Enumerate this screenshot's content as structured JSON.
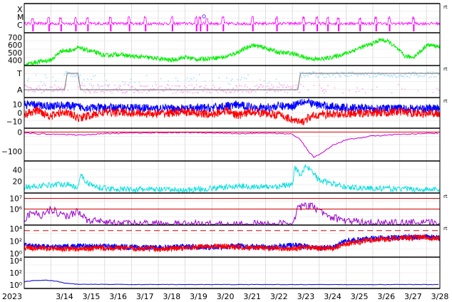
{
  "chart_data": {
    "type": "line",
    "x_axis": {
      "year_label": "2023",
      "tick_labels": [
        "3/14",
        "3/15",
        "3/16",
        "3/17",
        "3/18",
        "3/19",
        "3/20",
        "3/21",
        "3/22",
        "3/23",
        "3/24",
        "3/25",
        "3/26",
        "3/27",
        "3/28"
      ],
      "domain_days": [
        13.0,
        28.5
      ]
    },
    "panels": [
      {
        "id": "flares",
        "y_tick_labels": [
          "X",
          "M",
          "C"
        ],
        "right_marker": "rt",
        "series": [
          {
            "color": "#ff00ff",
            "baseline_class": "C",
            "event_days": [
              13.3,
              13.9,
              14.35,
              14.9,
              15.35,
              16.2,
              16.9,
              17.5,
              18.5,
              19.4,
              19.55,
              19.8,
              20.4,
              21.5,
              22.4,
              23.4,
              23.9,
              24.3,
              24.7,
              25.5,
              26.1,
              26.6,
              27.5
            ],
            "max_class": "M",
            "max_day": 19.7
          }
        ]
      },
      {
        "id": "solar-wind-speed",
        "y_ticks": [
          400,
          500,
          600,
          700
        ],
        "y_tick_labels": [
          "400",
          "500",
          "600",
          "700"
        ],
        "ylim": [
          330,
          760
        ],
        "series": [
          {
            "color": "#00ee00",
            "days": [
              13.0,
              13.5,
              14.0,
              14.4,
              14.6,
              15.0,
              15.5,
              16.0,
              16.5,
              17.0,
              17.5,
              18.0,
              18.5,
              19.0,
              19.5,
              20.0,
              20.5,
              21.0,
              21.5,
              22.0,
              22.5,
              23.0,
              23.5,
              24.0,
              24.5,
              25.0,
              25.5,
              26.0,
              26.3,
              26.6,
              27.0,
              27.2,
              27.5,
              27.8,
              28.0,
              28.5
            ],
            "values": [
              340,
              380,
              400,
              530,
              520,
              560,
              520,
              460,
              480,
              450,
              440,
              420,
              400,
              440,
              410,
              430,
              440,
              510,
              600,
              560,
              500,
              490,
              430,
              410,
              440,
              490,
              560,
              620,
              670,
              640,
              520,
              450,
              440,
              520,
              600,
              580
            ]
          }
        ]
      },
      {
        "id": "imf-sector",
        "y_tick_labels": [
          "T",
          "A"
        ],
        "right_marker": "rt",
        "series": [
          {
            "name": "",
            "color": "#aaddff",
            "role": "toward-scatter"
          },
          {
            "name": "",
            "color": "#ffaaee",
            "role": "away-scatter"
          },
          {
            "color": "#888888",
            "role": "sector",
            "days": [
              13.0,
              14.5,
              14.6,
              15.0,
              15.1,
              23.2,
              23.3,
              28.5
            ],
            "levels": [
              "A",
              "A",
              "T",
              "T",
              "A",
              "A",
              "T",
              "T"
            ]
          }
        ]
      },
      {
        "id": "imf-bz",
        "y_ticks": [
          10,
          0,
          -10
        ],
        "y_tick_labels": [
          "10",
          "0",
          "−10"
        ],
        "ylim": [
          -18,
          18
        ],
        "right_marker": "rt",
        "series": [
          {
            "color": "#0000ff",
            "role": "Bt",
            "days": [
              13,
              13.5,
              14,
              14.5,
              15,
              15.5,
              16,
              17,
              18,
              19,
              20,
              20.5,
              21,
              21.5,
              22,
              22.5,
              23,
              23.3,
              23.6,
              24,
              25,
              26,
              27,
              28,
              28.5
            ],
            "values": [
              10,
              9,
              8,
              9,
              7,
              6,
              6,
              6,
              5,
              5,
              6,
              8,
              9,
              7,
              6,
              8,
              8,
              14,
              12,
              9,
              6,
              5,
              5,
              5,
              5
            ]
          },
          {
            "color": "#ff0000",
            "role": "Bz",
            "days": [
              13,
              13.5,
              14,
              14.5,
              15,
              15.5,
              16,
              17,
              18,
              19,
              20,
              20.5,
              21,
              21.5,
              22,
              22.5,
              23,
              23.3,
              23.6,
              24,
              25,
              26,
              27,
              28,
              28.5
            ],
            "values": [
              -2,
              3,
              -4,
              2,
              -6,
              -3,
              1,
              0,
              -1,
              1,
              -2,
              3,
              -3,
              2,
              -1,
              -2,
              -8,
              -12,
              -6,
              -2,
              -1,
              0,
              1,
              -1,
              0
            ]
          }
        ]
      },
      {
        "id": "dst",
        "y_ticks": [
          0,
          -100
        ],
        "y_tick_labels": [
          "0",
          "−100"
        ],
        "ylim": [
          -150,
          20
        ],
        "series": [
          {
            "color": "#cc00cc",
            "days": [
              13,
              13.5,
              14,
              14.5,
              15,
              15.5,
              16,
              17,
              18,
              19,
              20,
              21,
              22,
              23,
              23.3,
              23.6,
              23.8,
              24.0,
              24.5,
              25,
              26,
              27,
              28,
              28.5
            ],
            "values": [
              -5,
              -8,
              -10,
              -12,
              -15,
              -12,
              -8,
              -5,
              -3,
              -2,
              -5,
              -8,
              -5,
              -10,
              -40,
              -100,
              -130,
              -115,
              -70,
              -40,
              -20,
              -12,
              -8,
              -5
            ]
          },
          {
            "color": "#dd0000",
            "role": "zero-line",
            "values": [
              0
            ]
          }
        ]
      },
      {
        "id": "kp-index",
        "y_ticks": [
          20,
          40
        ],
        "y_tick_labels": [
          "20",
          "40"
        ],
        "ylim": [
          0,
          55
        ],
        "series": [
          {
            "color": "#00dddd",
            "days": [
              13,
              13.5,
              14,
              14.5,
              15,
              15.1,
              15.3,
              15.6,
              16,
              17,
              18,
              19,
              20,
              21,
              22,
              23,
              23.1,
              23.3,
              23.5,
              23.7,
              24,
              24.5,
              25,
              26,
              27,
              28,
              28.5
            ],
            "values": [
              10,
              12,
              14,
              16,
              10,
              34,
              18,
              12,
              8,
              6,
              6,
              5,
              8,
              12,
              10,
              14,
              44,
              30,
              48,
              38,
              22,
              16,
              10,
              8,
              7,
              6,
              6
            ]
          }
        ]
      },
      {
        "id": "proton-flux",
        "y_ticks": [
          1000000,
          10000000
        ],
        "y_tick_labels": [
          "10⁶",
          "10⁷"
        ],
        "ylim_log10": [
          4.5,
          7.5
        ],
        "right_marker": "rt",
        "series": [
          {
            "color": "#9900cc",
            "days": [
              13,
              13.3,
              13.6,
              14,
              14.3,
              14.6,
              15,
              15.3,
              16,
              17,
              18,
              19,
              20,
              21,
              22,
              23,
              23.2,
              23.5,
              23.8,
              24,
              24.5,
              25,
              26,
              27,
              28,
              28.5
            ],
            "values_log10": [
              5.0,
              5.8,
              5.4,
              6.0,
              5.6,
              5.3,
              5.9,
              5.0,
              4.7,
              4.6,
              4.6,
              4.6,
              4.6,
              4.6,
              4.6,
              4.6,
              6.1,
              6.3,
              6.2,
              5.8,
              5.2,
              4.9,
              4.7,
              4.7,
              4.7,
              4.7
            ]
          },
          {
            "color": "#cc0000",
            "role": "thresholds",
            "values_log10": [
              6.0,
              7.0
            ]
          }
        ]
      },
      {
        "id": "electron-flux",
        "y_ticks": [
          1,
          100,
          10000
        ],
        "y_tick_labels": [
          "10⁰",
          "10²",
          "10⁴"
        ],
        "ylim_log10": [
          -0.6,
          4.6
        ],
        "right_marker": "rt",
        "series": [
          {
            "color": "#0000ff",
            "days": [
              13,
              14,
              15,
              16,
              17,
              18,
              19,
              20,
              21,
              22,
              23,
              23.5,
              24,
              24.5,
              25,
              26,
              27,
              28,
              28.5
            ],
            "values_log10": [
              1.4,
              1.0,
              1.2,
              1.1,
              1.0,
              0.9,
              1.1,
              1.0,
              1.2,
              1.0,
              1.3,
              1.2,
              0.9,
              1.0,
              2.0,
              2.4,
              2.6,
              2.7,
              2.5
            ]
          },
          {
            "color": "#ff0000",
            "days": [
              13,
              14,
              15,
              16,
              17,
              18,
              19,
              20,
              21,
              22,
              23,
              23.5,
              24,
              24.5,
              25,
              26,
              27,
              28,
              28.5
            ],
            "values_log10": [
              1.0,
              0.8,
              0.7,
              0.9,
              0.8,
              0.7,
              0.9,
              1.2,
              1.0,
              0.9,
              0.8,
              1.0,
              0.8,
              0.8,
              1.6,
              2.2,
              2.5,
              2.6,
              2.4
            ]
          },
          {
            "color": "#dd0000",
            "role": "threshold-dashed",
            "values_log10": [
              3.7
            ]
          }
        ]
      },
      {
        "id": "neutron-flux",
        "y_ticks": [
          1,
          100,
          10000
        ],
        "y_tick_labels": [
          "10⁰",
          "10²",
          "10⁴"
        ],
        "ylim_log10": [
          -0.6,
          4.6
        ],
        "series": [
          {
            "color": "#0000cc",
            "days": [
              13,
              13.3,
              13.8,
              14.2,
              14.5,
              15,
              16,
              17,
              18,
              19,
              20,
              21,
              22,
              23,
              24,
              25,
              26,
              27,
              28,
              28.5
            ],
            "values_log10": [
              0.5,
              0.7,
              0.8,
              0.6,
              0.3,
              0.1,
              0.1,
              0.05,
              0.05,
              0.05,
              0.05,
              0.05,
              0.05,
              0.05,
              0.05,
              0.05,
              0.05,
              0.05,
              0.05,
              0.05
            ]
          }
        ]
      }
    ]
  }
}
